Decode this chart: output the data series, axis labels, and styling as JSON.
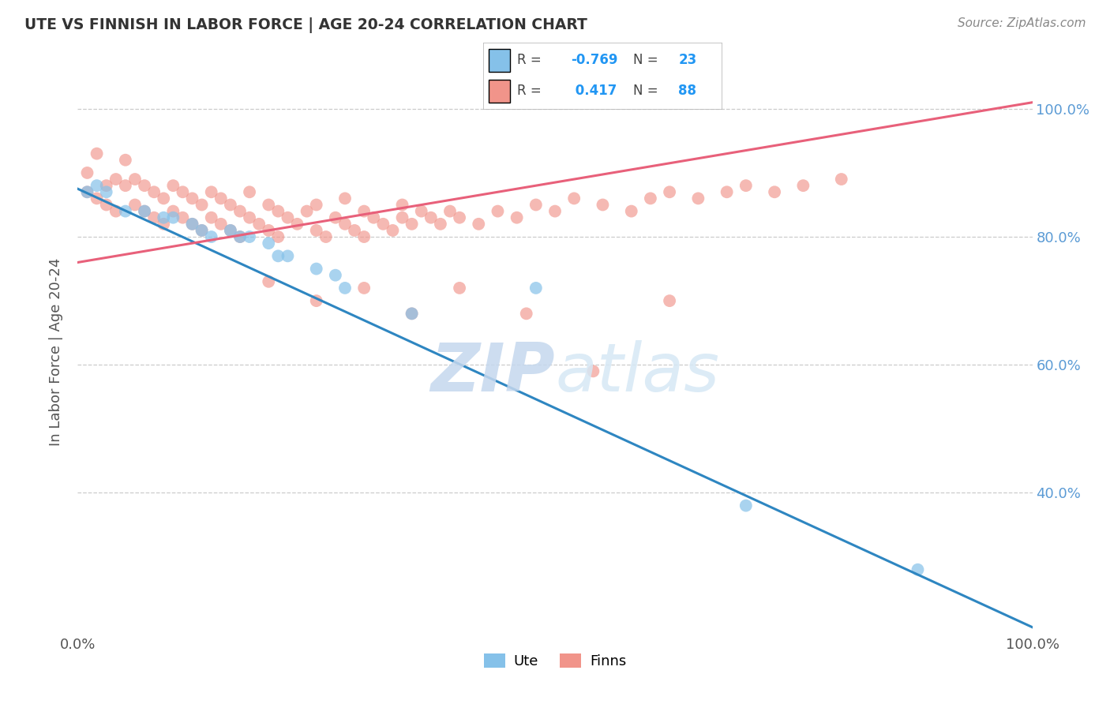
{
  "title": "UTE VS FINNISH IN LABOR FORCE | AGE 20-24 CORRELATION CHART",
  "source": "Source: ZipAtlas.com",
  "ylabel": "In Labor Force | Age 20-24",
  "ute_R": -0.769,
  "ute_N": 23,
  "finn_R": 0.417,
  "finn_N": 88,
  "ute_color": "#85C1E9",
  "finn_color": "#F1948A",
  "ute_trend_color": "#2E86C1",
  "finn_trend_color": "#E8607A",
  "xlim": [
    0.0,
    1.0
  ],
  "ylim": [
    0.18,
    1.06
  ],
  "yticks": [
    0.4,
    0.6,
    0.8,
    1.0
  ],
  "background_color": "#ffffff",
  "ute_x": [
    0.01,
    0.02,
    0.03,
    0.05,
    0.07,
    0.09,
    0.12,
    0.14,
    0.16,
    0.18,
    0.2,
    0.22,
    0.25,
    0.27,
    0.1,
    0.13,
    0.17,
    0.21,
    0.28,
    0.35,
    0.48,
    0.7,
    0.88
  ],
  "ute_y": [
    0.87,
    0.88,
    0.87,
    0.84,
    0.84,
    0.83,
    0.82,
    0.8,
    0.81,
    0.8,
    0.79,
    0.77,
    0.75,
    0.74,
    0.83,
    0.81,
    0.8,
    0.77,
    0.72,
    0.68,
    0.72,
    0.38,
    0.28
  ],
  "ute_line_x0": 0.0,
  "ute_line_y0": 0.875,
  "ute_line_x1": 1.0,
  "ute_line_y1": 0.19,
  "finn_line_x0": 0.0,
  "finn_line_y0": 0.76,
  "finn_line_x1": 1.0,
  "finn_line_y1": 1.01,
  "finn_x": [
    0.01,
    0.01,
    0.02,
    0.02,
    0.03,
    0.03,
    0.04,
    0.04,
    0.05,
    0.05,
    0.06,
    0.06,
    0.07,
    0.07,
    0.08,
    0.08,
    0.09,
    0.09,
    0.1,
    0.1,
    0.11,
    0.11,
    0.12,
    0.12,
    0.13,
    0.13,
    0.14,
    0.14,
    0.15,
    0.15,
    0.16,
    0.16,
    0.17,
    0.17,
    0.18,
    0.18,
    0.19,
    0.2,
    0.2,
    0.21,
    0.21,
    0.22,
    0.23,
    0.24,
    0.25,
    0.25,
    0.26,
    0.27,
    0.28,
    0.28,
    0.29,
    0.3,
    0.3,
    0.31,
    0.32,
    0.33,
    0.34,
    0.34,
    0.35,
    0.36,
    0.37,
    0.38,
    0.39,
    0.4,
    0.42,
    0.44,
    0.46,
    0.48,
    0.5,
    0.52,
    0.55,
    0.58,
    0.6,
    0.62,
    0.65,
    0.68,
    0.7,
    0.73,
    0.76,
    0.8,
    0.2,
    0.25,
    0.3,
    0.35,
    0.4,
    0.47,
    0.54,
    0.62
  ],
  "finn_y": [
    0.87,
    0.9,
    0.86,
    0.93,
    0.85,
    0.88,
    0.84,
    0.89,
    0.88,
    0.92,
    0.85,
    0.89,
    0.84,
    0.88,
    0.83,
    0.87,
    0.82,
    0.86,
    0.84,
    0.88,
    0.83,
    0.87,
    0.82,
    0.86,
    0.81,
    0.85,
    0.83,
    0.87,
    0.82,
    0.86,
    0.81,
    0.85,
    0.8,
    0.84,
    0.83,
    0.87,
    0.82,
    0.81,
    0.85,
    0.8,
    0.84,
    0.83,
    0.82,
    0.84,
    0.81,
    0.85,
    0.8,
    0.83,
    0.82,
    0.86,
    0.81,
    0.8,
    0.84,
    0.83,
    0.82,
    0.81,
    0.83,
    0.85,
    0.82,
    0.84,
    0.83,
    0.82,
    0.84,
    0.83,
    0.82,
    0.84,
    0.83,
    0.85,
    0.84,
    0.86,
    0.85,
    0.84,
    0.86,
    0.87,
    0.86,
    0.87,
    0.88,
    0.87,
    0.88,
    0.89,
    0.73,
    0.7,
    0.72,
    0.68,
    0.72,
    0.68,
    0.59,
    0.7
  ]
}
